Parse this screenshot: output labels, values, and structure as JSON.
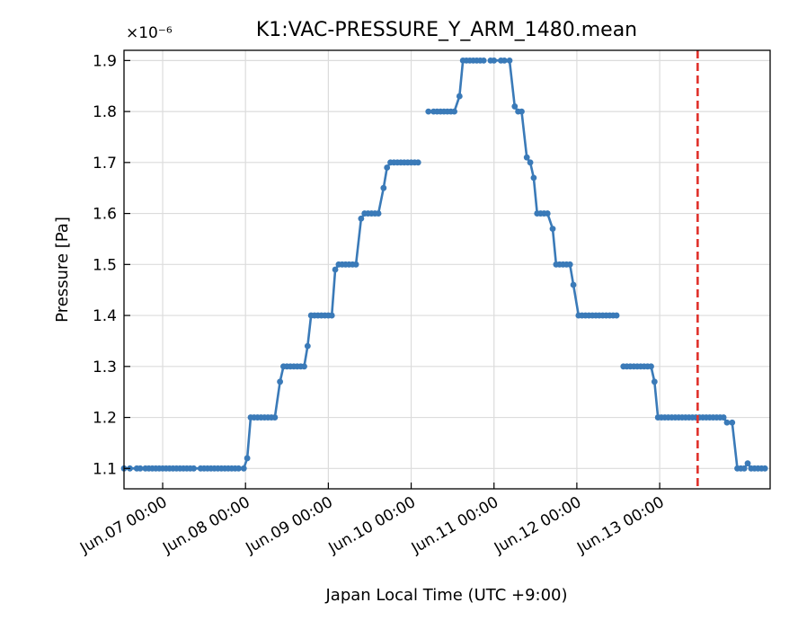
{
  "chart_data": {
    "type": "line",
    "title": "K1:VAC-PRESSURE_Y_ARM_1480.mean",
    "offset_label": "×10⁻⁶",
    "xlabel": "Japan Local Time (UTC +9:00)",
    "ylabel": "Pressure [Pa]",
    "xlim": [
      "Jun.06 12:48",
      "Jun.14 08:00"
    ],
    "ylim": [
      1.06,
      1.92
    ],
    "x_ticks": [
      "Jun.07 00:00",
      "Jun.08 00:00",
      "Jun.09 00:00",
      "Jun.10 00:00",
      "Jun.11 00:00",
      "Jun.12 00:00",
      "Jun.13 00:00"
    ],
    "y_ticks": [
      "1.1",
      "1.2",
      "1.3",
      "1.4",
      "1.5",
      "1.6",
      "1.7",
      "1.8",
      "1.9"
    ],
    "grid": true,
    "colors": {
      "series": "#3a7ab8",
      "marker_line": "#e0312b"
    },
    "marker_line_x": "Jun.13 11:00",
    "series": [
      {
        "name": "",
        "points": [
          [
            "Jun.06 12:48",
            1.1
          ],
          [
            "Jun.06 14:30",
            1.1
          ],
          [
            "Jun.06 16:30",
            1.1
          ],
          [
            "Jun.06 17:30",
            1.1
          ],
          [
            "Jun.06 19:00",
            1.1
          ],
          [
            "Jun.06 20:00",
            1.1
          ],
          [
            "Jun.06 21:00",
            1.1
          ],
          [
            "Jun.06 22:00",
            1.1
          ],
          [
            "Jun.06 23:00",
            1.1
          ],
          [
            "Jun.07 00:00",
            1.1
          ],
          [
            "Jun.07 01:00",
            1.1
          ],
          [
            "Jun.07 02:00",
            1.1
          ],
          [
            "Jun.07 03:00",
            1.1
          ],
          [
            "Jun.07 04:00",
            1.1
          ],
          [
            "Jun.07 05:00",
            1.1
          ],
          [
            "Jun.07 06:00",
            1.1
          ],
          [
            "Jun.07 07:00",
            1.1
          ],
          [
            "Jun.07 08:00",
            1.1
          ],
          [
            "Jun.07 09:00",
            1.1
          ],
          [
            "Jun.07 11:00",
            1.1
          ],
          [
            "Jun.07 12:00",
            1.1
          ],
          [
            "Jun.07 13:00",
            1.1
          ],
          [
            "Jun.07 14:00",
            1.1
          ],
          [
            "Jun.07 15:00",
            1.1
          ],
          [
            "Jun.07 16:00",
            1.1
          ],
          [
            "Jun.07 17:00",
            1.1
          ],
          [
            "Jun.07 18:00",
            1.1
          ],
          [
            "Jun.07 19:00",
            1.1
          ],
          [
            "Jun.07 20:00",
            1.1
          ],
          [
            "Jun.07 21:00",
            1.1
          ],
          [
            "Jun.07 22:00",
            1.1
          ],
          [
            "Jun.07 23:30",
            1.1
          ],
          [
            "Jun.08 00:30",
            1.12
          ],
          [
            "Jun.08 01:30",
            1.2
          ],
          [
            "Jun.08 02:30",
            1.2
          ],
          [
            "Jun.08 03:30",
            1.2
          ],
          [
            "Jun.08 04:30",
            1.2
          ],
          [
            "Jun.08 05:30",
            1.2
          ],
          [
            "Jun.08 06:30",
            1.2
          ],
          [
            "Jun.08 07:30",
            1.2
          ],
          [
            "Jun.08 08:30",
            1.2
          ],
          [
            "Jun.08 10:00",
            1.27
          ],
          [
            "Jun.08 11:00",
            1.3
          ],
          [
            "Jun.08 12:00",
            1.3
          ],
          [
            "Jun.08 13:00",
            1.3
          ],
          [
            "Jun.08 14:00",
            1.3
          ],
          [
            "Jun.08 15:00",
            1.3
          ],
          [
            "Jun.08 16:00",
            1.3
          ],
          [
            "Jun.08 17:00",
            1.3
          ],
          [
            "Jun.08 18:00",
            1.34
          ],
          [
            "Jun.08 19:00",
            1.4
          ],
          [
            "Jun.08 20:00",
            1.4
          ],
          [
            "Jun.08 21:00",
            1.4
          ],
          [
            "Jun.08 22:00",
            1.4
          ],
          [
            "Jun.08 23:00",
            1.4
          ],
          [
            "Jun.09 00:00",
            1.4
          ],
          [
            "Jun.09 01:00",
            1.4
          ],
          [
            "Jun.09 02:00",
            1.49
          ],
          [
            "Jun.09 03:00",
            1.5
          ],
          [
            "Jun.09 04:00",
            1.5
          ],
          [
            "Jun.09 05:00",
            1.5
          ],
          [
            "Jun.09 06:00",
            1.5
          ],
          [
            "Jun.09 07:00",
            1.5
          ],
          [
            "Jun.09 08:00",
            1.5
          ],
          [
            "Jun.09 09:30",
            1.59
          ],
          [
            "Jun.09 10:30",
            1.6
          ],
          [
            "Jun.09 11:30",
            1.6
          ],
          [
            "Jun.09 12:30",
            1.6
          ],
          [
            "Jun.09 13:30",
            1.6
          ],
          [
            "Jun.09 14:30",
            1.6
          ],
          [
            "Jun.09 16:00",
            1.65
          ],
          [
            "Jun.09 17:00",
            1.69
          ],
          [
            "Jun.09 18:00",
            1.7
          ],
          [
            "Jun.09 19:00",
            1.7
          ],
          [
            "Jun.09 20:00",
            1.7
          ],
          [
            "Jun.09 21:00",
            1.7
          ],
          [
            "Jun.09 22:00",
            1.7
          ],
          [
            "Jun.09 23:00",
            1.7
          ],
          [
            "Jun.10 00:00",
            1.7
          ],
          [
            "Jun.10 01:00",
            1.7
          ],
          [
            "Jun.10 02:00",
            1.7
          ]
        ]
      },
      {
        "name": "",
        "points": [
          [
            "Jun.10 05:00",
            1.8
          ],
          [
            "Jun.10 06:30",
            1.8
          ],
          [
            "Jun.10 07:30",
            1.8
          ],
          [
            "Jun.10 08:30",
            1.8
          ],
          [
            "Jun.10 09:30",
            1.8
          ],
          [
            "Jun.10 10:30",
            1.8
          ],
          [
            "Jun.10 11:30",
            1.8
          ],
          [
            "Jun.10 12:30",
            1.8
          ],
          [
            "Jun.10 14:00",
            1.83
          ],
          [
            "Jun.10 15:00",
            1.9
          ],
          [
            "Jun.10 16:00",
            1.9
          ],
          [
            "Jun.10 17:00",
            1.9
          ],
          [
            "Jun.10 18:00",
            1.9
          ],
          [
            "Jun.10 19:00",
            1.9
          ],
          [
            "Jun.10 20:00",
            1.9
          ],
          [
            "Jun.10 21:00",
            1.9
          ]
        ]
      },
      {
        "name": "",
        "points": [
          [
            "Jun.10 23:00",
            1.9
          ],
          [
            "Jun.11 00:00",
            1.9
          ],
          [
            "Jun.11 02:00",
            1.9
          ],
          [
            "Jun.11 03:00",
            1.9
          ],
          [
            "Jun.11 04:30",
            1.9
          ],
          [
            "Jun.11 06:00",
            1.81
          ],
          [
            "Jun.11 07:00",
            1.8
          ],
          [
            "Jun.11 08:00",
            1.8
          ],
          [
            "Jun.11 09:30",
            1.71
          ],
          [
            "Jun.11 10:30",
            1.7
          ],
          [
            "Jun.11 11:30",
            1.67
          ],
          [
            "Jun.11 12:30",
            1.6
          ],
          [
            "Jun.11 13:30",
            1.6
          ],
          [
            "Jun.11 14:30",
            1.6
          ],
          [
            "Jun.11 15:30",
            1.6
          ],
          [
            "Jun.11 17:00",
            1.57
          ],
          [
            "Jun.11 18:00",
            1.5
          ],
          [
            "Jun.11 19:00",
            1.5
          ],
          [
            "Jun.11 20:00",
            1.5
          ],
          [
            "Jun.11 21:00",
            1.5
          ],
          [
            "Jun.11 22:00",
            1.5
          ],
          [
            "Jun.11 23:00",
            1.46
          ],
          [
            "Jun.12 00:30",
            1.4
          ],
          [
            "Jun.12 01:30",
            1.4
          ],
          [
            "Jun.12 02:30",
            1.4
          ],
          [
            "Jun.12 03:30",
            1.4
          ],
          [
            "Jun.12 04:30",
            1.4
          ],
          [
            "Jun.12 05:30",
            1.4
          ],
          [
            "Jun.12 06:30",
            1.4
          ],
          [
            "Jun.12 07:30",
            1.4
          ],
          [
            "Jun.12 08:30",
            1.4
          ],
          [
            "Jun.12 09:30",
            1.4
          ],
          [
            "Jun.12 10:30",
            1.4
          ],
          [
            "Jun.12 11:30",
            1.4
          ]
        ]
      },
      {
        "name": "",
        "points": [
          [
            "Jun.12 13:30",
            1.3
          ],
          [
            "Jun.12 14:30",
            1.3
          ],
          [
            "Jun.12 15:30",
            1.3
          ],
          [
            "Jun.12 16:30",
            1.3
          ],
          [
            "Jun.12 17:30",
            1.3
          ],
          [
            "Jun.12 18:30",
            1.3
          ],
          [
            "Jun.12 19:30",
            1.3
          ],
          [
            "Jun.12 20:30",
            1.3
          ],
          [
            "Jun.12 21:30",
            1.3
          ],
          [
            "Jun.12 22:30",
            1.27
          ],
          [
            "Jun.12 23:30",
            1.2
          ],
          [
            "Jun.13 00:30",
            1.2
          ],
          [
            "Jun.13 01:30",
            1.2
          ],
          [
            "Jun.13 02:30",
            1.2
          ],
          [
            "Jun.13 03:30",
            1.2
          ],
          [
            "Jun.13 04:30",
            1.2
          ],
          [
            "Jun.13 05:30",
            1.2
          ],
          [
            "Jun.13 06:30",
            1.2
          ],
          [
            "Jun.13 07:30",
            1.2
          ],
          [
            "Jun.13 08:30",
            1.2
          ],
          [
            "Jun.13 09:30",
            1.2
          ],
          [
            "Jun.13 10:30",
            1.2
          ],
          [
            "Jun.13 11:30",
            1.2
          ],
          [
            "Jun.13 12:30",
            1.2
          ],
          [
            "Jun.13 13:30",
            1.2
          ],
          [
            "Jun.13 14:30",
            1.2
          ],
          [
            "Jun.13 15:30",
            1.2
          ],
          [
            "Jun.13 16:30",
            1.2
          ],
          [
            "Jun.13 17:30",
            1.2
          ],
          [
            "Jun.13 18:30",
            1.2
          ],
          [
            "Jun.13 19:30",
            1.19
          ],
          [
            "Jun.13 21:00",
            1.19
          ],
          [
            "Jun.13 22:30",
            1.1
          ],
          [
            "Jun.13 23:30",
            1.1
          ],
          [
            "Jun.14 00:30",
            1.1
          ],
          [
            "Jun.14 01:30",
            1.11
          ],
          [
            "Jun.14 02:30",
            1.1
          ],
          [
            "Jun.14 03:30",
            1.1
          ],
          [
            "Jun.14 04:30",
            1.1
          ],
          [
            "Jun.14 05:30",
            1.1
          ],
          [
            "Jun.14 06:30",
            1.1
          ]
        ]
      }
    ]
  }
}
